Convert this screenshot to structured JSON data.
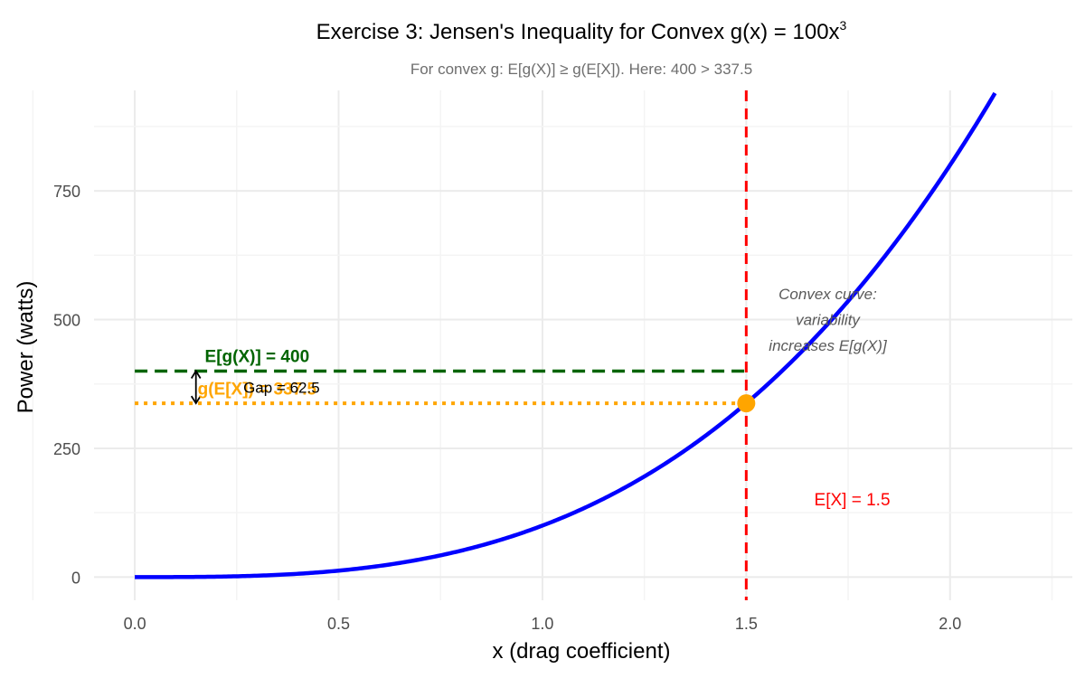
{
  "chart_data": {
    "type": "line",
    "title_main": "Exercise 3: Jensen's Inequality for Convex g",
    "title_func": "(x) = 100x",
    "title_exp": "3",
    "subtitle": "For convex g: E[g(X)] ≥ g(E[X]). Here: 400 > 337.5",
    "xlabel": "x (drag coefficient)",
    "ylabel": "Power (watts)",
    "xlim": [
      -0.1,
      2.3
    ],
    "ylim": [
      -45,
      945
    ],
    "x_ticks": [
      0.0,
      0.5,
      1.0,
      1.5,
      2.0
    ],
    "x_tick_labels": [
      "0.0",
      "0.5",
      "1.0",
      "1.5",
      "2.0"
    ],
    "y_ticks": [
      0,
      250,
      500,
      750
    ],
    "y_tick_labels": [
      "0",
      "250",
      "500",
      "750"
    ],
    "series": [
      {
        "name": "g(x) = 100x^3",
        "coefficient": 100,
        "exponent": 3,
        "x_from": 0,
        "x_to": 2.3,
        "color": "#0000ff"
      }
    ],
    "reference_lines": {
      "vertical": {
        "x": 1.5,
        "color": "#ff0000",
        "style": "dashed"
      },
      "expected_g": {
        "y": 400,
        "x_from": 0,
        "x_to": 1.5,
        "color": "#006400",
        "style": "dashed"
      },
      "g_expected": {
        "y": 337.5,
        "x_from": 0,
        "x_to": 1.5,
        "color": "#ffa500",
        "style": "dotted"
      }
    },
    "point": {
      "x": 1.5,
      "y": 337.5,
      "color": "#ffa500"
    },
    "gap_arrow": {
      "x": 0.15,
      "y_from": 337.5,
      "y_to": 400
    },
    "annotations": {
      "expected_g_label": {
        "text": "E[g(X)] = 400",
        "x": 0.3,
        "y": 428,
        "color": "#006400"
      },
      "g_expected_label": {
        "text": "g(E[X]) = 337.5",
        "x": 0.3,
        "y": 365,
        "color": "#ffa500"
      },
      "gap_label": {
        "text": "Gap = 62.5",
        "x": 0.36,
        "y": 368.75,
        "color": "#000000"
      },
      "ex_label": {
        "text": "E[X] = 1.5",
        "x": 1.76,
        "y": 150,
        "color": "#ff0000"
      },
      "convex_note": [
        "Convex curve:",
        "variability",
        "increases E[g(X)]"
      ]
    }
  }
}
